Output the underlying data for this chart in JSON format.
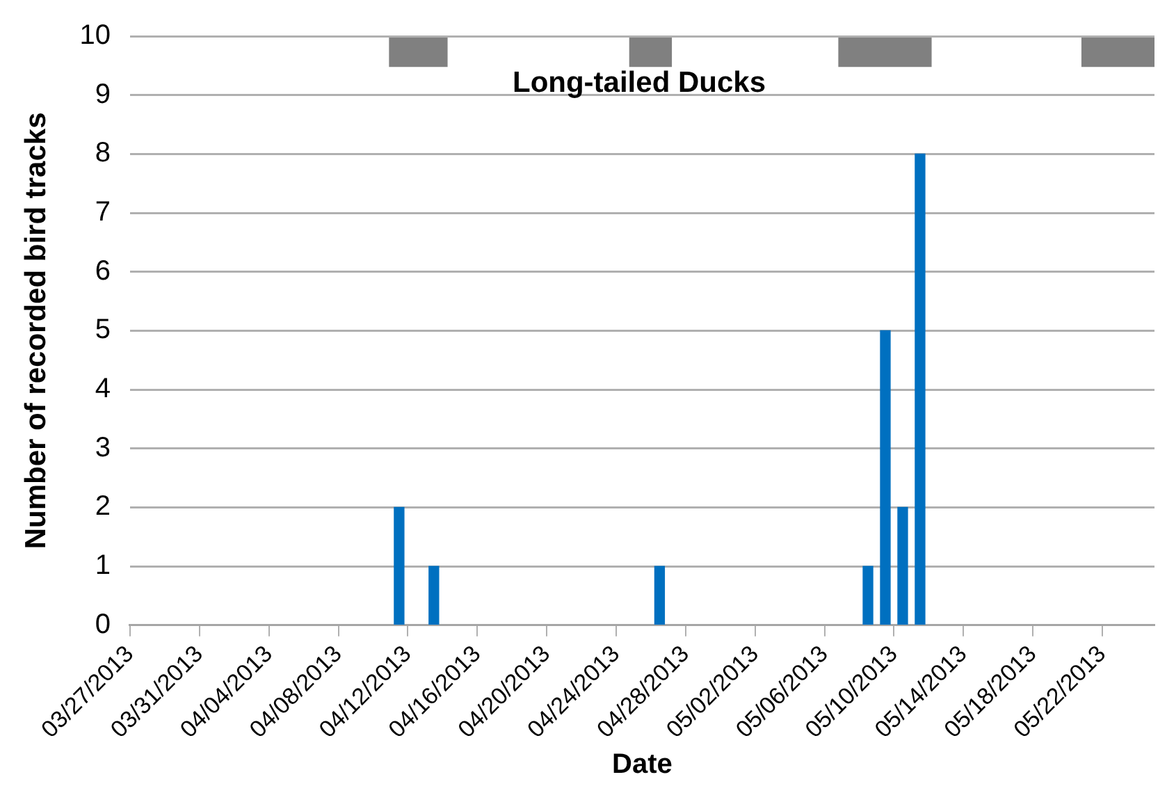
{
  "chart_data": {
    "type": "bar",
    "title": "Long-tailed Ducks",
    "xlabel": "Date",
    "ylabel": "Number of recorded bird tracks",
    "x": [
      "2013-04-11T12:00",
      "2013-04-13T12:00",
      "2013-04-26T12:00",
      "2013-05-08T12:00",
      "2013-05-09T12:00",
      "2013-05-10T12:00",
      "2013-05-11T12:00"
    ],
    "values": [
      2,
      1,
      1,
      1,
      5,
      2,
      8
    ],
    "color": "#0070c0",
    "xlim": [
      "2013-03-27",
      "2013-05-25"
    ],
    "xticks": [
      {
        "value": "2013-03-27",
        "label": "03/27/2013"
      },
      {
        "value": "2013-03-31",
        "label": "03/31/2013"
      },
      {
        "value": "2013-04-04",
        "label": "04/04/2013"
      },
      {
        "value": "2013-04-08",
        "label": "04/08/2013"
      },
      {
        "value": "2013-04-12",
        "label": "04/12/2013"
      },
      {
        "value": "2013-04-16",
        "label": "04/16/2013"
      },
      {
        "value": "2013-04-20",
        "label": "04/20/2013"
      },
      {
        "value": "2013-04-24",
        "label": "04/24/2013"
      },
      {
        "value": "2013-04-28",
        "label": "04/28/2013"
      },
      {
        "value": "2013-05-02",
        "label": "05/02/2013"
      },
      {
        "value": "2013-05-06",
        "label": "05/06/2013"
      },
      {
        "value": "2013-05-10",
        "label": "05/10/2013"
      },
      {
        "value": "2013-05-14",
        "label": "05/14/2013"
      },
      {
        "value": "2013-05-18",
        "label": "05/18/2013"
      },
      {
        "value": "2013-05-22",
        "label": "05/22/2013"
      }
    ],
    "ylim": [
      0,
      10
    ],
    "yticks": [
      0,
      1,
      2,
      3,
      4,
      5,
      6,
      7,
      8,
      9,
      10
    ],
    "grid": "y",
    "bands": [
      {
        "axis": "x",
        "from": "2013-04-10T22:00",
        "to": "2013-04-14T07:00",
        "color": "#808080"
      },
      {
        "axis": "x",
        "from": "2013-04-24T18:00",
        "to": "2013-04-27T05:00",
        "color": "#808080"
      },
      {
        "axis": "x",
        "from": "2013-05-06T19:00",
        "to": "2013-05-12T04:00",
        "color": "#808080"
      },
      {
        "axis": "x",
        "from": "2013-05-20T19:00",
        "to": "2013-05-25",
        "color": "#808080"
      }
    ]
  }
}
